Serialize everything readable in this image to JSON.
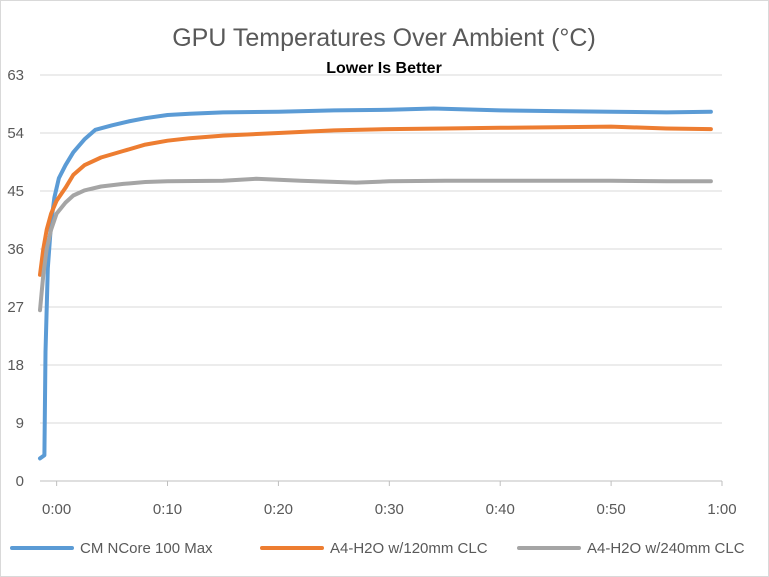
{
  "chart_data": {
    "type": "line",
    "title": "GPU Temperatures  Over Ambient (°C)",
    "subtitle": "Lower Is Better",
    "xlabel": "",
    "ylabel": "",
    "ylim": [
      0,
      63
    ],
    "yticks": [
      0,
      9,
      18,
      27,
      36,
      45,
      54,
      63
    ],
    "xlim": [
      -1.5,
      60
    ],
    "xticks": [
      {
        "value": 0,
        "label": "0:00"
      },
      {
        "value": 10,
        "label": "0:10"
      },
      {
        "value": 20,
        "label": "0:20"
      },
      {
        "value": 30,
        "label": "0:30"
      },
      {
        "value": 40,
        "label": "0:40"
      },
      {
        "value": 50,
        "label": "0:50"
      },
      {
        "value": 60,
        "label": "1:00"
      }
    ],
    "grid": "horizontal",
    "legend_position": "bottom",
    "series": [
      {
        "name": "CM NCore 100 Max",
        "color": "#5b9bd5",
        "points": [
          [
            -1.5,
            3.5
          ],
          [
            -1.1,
            4
          ],
          [
            -1.0,
            20
          ],
          [
            -0.8,
            33
          ],
          [
            -0.5,
            40
          ],
          [
            -0.2,
            44
          ],
          [
            0.2,
            47
          ],
          [
            0.8,
            49
          ],
          [
            1.5,
            51
          ],
          [
            2.5,
            53
          ],
          [
            3.5,
            54.5
          ],
          [
            5,
            55.2
          ],
          [
            6.5,
            55.8
          ],
          [
            8,
            56.3
          ],
          [
            10,
            56.8
          ],
          [
            12,
            57.0
          ],
          [
            15,
            57.2
          ],
          [
            20,
            57.3
          ],
          [
            25,
            57.5
          ],
          [
            30,
            57.6
          ],
          [
            34,
            57.8
          ],
          [
            40,
            57.5
          ],
          [
            45,
            57.4
          ],
          [
            50,
            57.3
          ],
          [
            55,
            57.2
          ],
          [
            59,
            57.3
          ]
        ]
      },
      {
        "name": "A4-H2O w/120mm CLC",
        "color": "#ed7d31",
        "points": [
          [
            -1.5,
            32
          ],
          [
            -1.2,
            36
          ],
          [
            -0.9,
            39
          ],
          [
            -0.5,
            41.5
          ],
          [
            0,
            43.5
          ],
          [
            0.8,
            45.5
          ],
          [
            1.5,
            47.5
          ],
          [
            2.5,
            49
          ],
          [
            4,
            50.2
          ],
          [
            6,
            51.2
          ],
          [
            8,
            52.2
          ],
          [
            10,
            52.8
          ],
          [
            12,
            53.2
          ],
          [
            15,
            53.6
          ],
          [
            20,
            54.0
          ],
          [
            25,
            54.4
          ],
          [
            30,
            54.6
          ],
          [
            35,
            54.7
          ],
          [
            40,
            54.8
          ],
          [
            45,
            54.9
          ],
          [
            50,
            55.0
          ],
          [
            55,
            54.7
          ],
          [
            59,
            54.6
          ]
        ]
      },
      {
        "name": "A4-H2O w/240mm CLC",
        "color": "#a5a5a5",
        "points": [
          [
            -1.5,
            26.5
          ],
          [
            -1.2,
            32
          ],
          [
            -0.9,
            36
          ],
          [
            -0.5,
            39
          ],
          [
            0,
            41.5
          ],
          [
            0.8,
            43.2
          ],
          [
            1.5,
            44.3
          ],
          [
            2.5,
            45.1
          ],
          [
            4,
            45.7
          ],
          [
            6,
            46.1
          ],
          [
            8,
            46.4
          ],
          [
            10,
            46.5
          ],
          [
            15,
            46.6
          ],
          [
            18,
            46.9
          ],
          [
            22,
            46.6
          ],
          [
            27,
            46.3
          ],
          [
            30,
            46.5
          ],
          [
            35,
            46.6
          ],
          [
            40,
            46.6
          ],
          [
            45,
            46.6
          ],
          [
            50,
            46.6
          ],
          [
            55,
            46.5
          ],
          [
            59,
            46.5
          ]
        ]
      }
    ]
  }
}
